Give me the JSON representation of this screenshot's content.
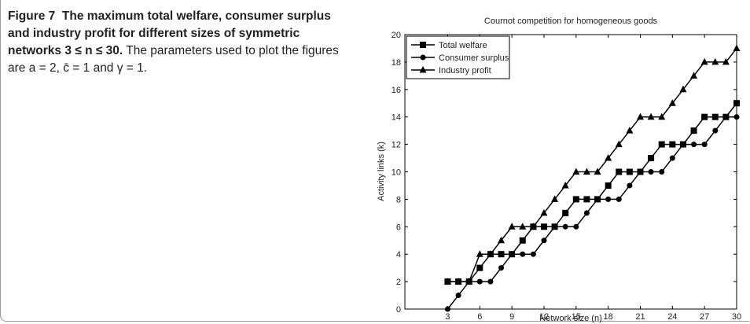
{
  "caption": {
    "label": "Figure 7",
    "title": "The maximum total welfare, consumer surplus and industry profit for different sizes of symmetric networks 3 ≤ n ≤ 30.",
    "text": "The parameters used to plot the figures are a = 2, c̄ = 1 and γ = 1."
  },
  "chart_data": {
    "type": "line",
    "title": "Cournot competition for homogeneous goods",
    "x_label": "Network size (n)",
    "y_label": "Activity links (k)",
    "x": [
      3,
      4,
      5,
      6,
      7,
      8,
      9,
      10,
      11,
      12,
      13,
      14,
      15,
      16,
      17,
      18,
      19,
      20,
      21,
      22,
      23,
      24,
      25,
      26,
      27,
      28,
      29,
      30
    ],
    "series": [
      {
        "name": "Total welfare",
        "color": "#000000",
        "marker": "square",
        "values": [
          2,
          2,
          2,
          3,
          4,
          4,
          4,
          5,
          6,
          6,
          6,
          7,
          8,
          8,
          8,
          9,
          10,
          10,
          10,
          11,
          12,
          12,
          12,
          13,
          14,
          14,
          14,
          15
        ]
      },
      {
        "name": "Consumer surplus",
        "color": "#000000",
        "marker": "circle",
        "values": [
          0,
          1,
          2,
          2,
          2,
          3,
          4,
          4,
          4,
          5,
          6,
          6,
          6,
          7,
          8,
          8,
          8,
          9,
          10,
          10,
          10,
          11,
          12,
          12,
          12,
          13,
          14,
          14
        ]
      },
      {
        "name": "Industry profit",
        "color": "#000000",
        "marker": "triangle",
        "values": [
          2,
          2,
          2,
          4,
          4,
          5,
          6,
          6,
          6,
          7,
          8,
          9,
          10,
          10,
          10,
          11,
          12,
          13,
          14,
          14,
          14,
          15,
          16,
          17,
          18,
          18,
          18,
          19
        ]
      }
    ],
    "xlim": [
      -1,
      30
    ],
    "xticks": [
      3,
      6,
      9,
      12,
      15,
      18,
      21,
      24,
      27,
      30
    ],
    "ylim": [
      0,
      20
    ],
    "yticks": [
      0,
      2,
      4,
      6,
      8,
      10,
      12,
      14,
      16,
      18,
      20
    ],
    "grid": false,
    "legend": "upper left"
  }
}
